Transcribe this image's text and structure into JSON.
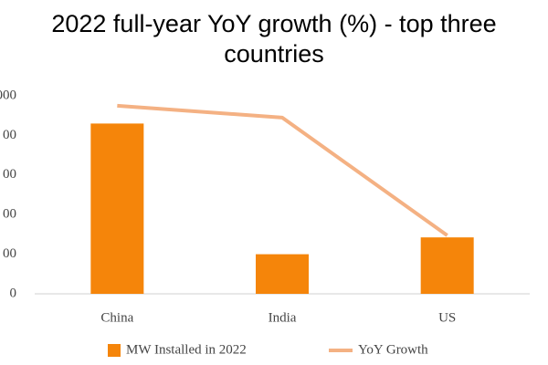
{
  "chart_data": {
    "type": "bar_line",
    "title": "2022 full-year YoY growth (%) - top three countries",
    "categories": [
      "China",
      "India",
      "US"
    ],
    "series": [
      {
        "name": "MW Installed in 2022",
        "type": "bar",
        "color": "#f5850a",
        "values": [
          86000,
          20000,
          28500
        ]
      },
      {
        "name": "YoY Growth",
        "type": "line",
        "axis": "y2",
        "color": "#f4b183",
        "values": [
          95,
          89,
          29.5
        ]
      }
    ],
    "ylim": [
      0,
      100000
    ],
    "yticks": [
      {
        "value": 0,
        "label": "0"
      },
      {
        "value": 20000,
        "label": "00"
      },
      {
        "value": 40000,
        "label": "00"
      },
      {
        "value": 60000,
        "label": "00"
      },
      {
        "value": 80000,
        "label": "00"
      },
      {
        "value": 100000,
        "label": "000"
      }
    ],
    "y2lim": [
      0,
      100
    ],
    "legend": "bottom"
  }
}
